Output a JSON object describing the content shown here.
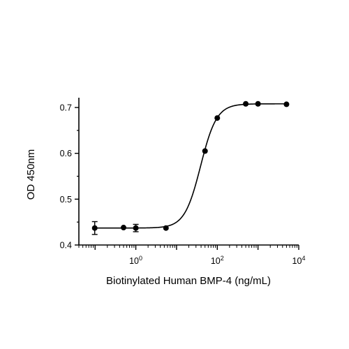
{
  "chart_data": {
    "type": "scatter",
    "xlabel": "Biotinylated Human BMP-4 (ng/mL)",
    "ylabel": "OD 450nm",
    "x_scale": "log",
    "xlim": [
      0.04,
      10000
    ],
    "ylim": [
      0.4,
      0.72
    ],
    "x_ticks": [
      {
        "value": 1,
        "base": "10",
        "exp": "0"
      },
      {
        "value": 100,
        "base": "10",
        "exp": "2"
      },
      {
        "value": 10000,
        "base": "10",
        "exp": "4"
      }
    ],
    "y_ticks": [
      {
        "value": 0.4,
        "label": "0.4"
      },
      {
        "value": 0.5,
        "label": "0.5"
      },
      {
        "value": 0.6,
        "label": "0.6"
      },
      {
        "value": 0.7,
        "label": "0.7"
      }
    ],
    "grid": false,
    "legend": false,
    "series": [
      {
        "x": [
          0.098,
          0.5,
          1.0,
          5.5,
          50,
          100,
          500,
          1000,
          5000
        ],
        "y": [
          0.437,
          0.438,
          0.437,
          0.437,
          0.605,
          0.677,
          0.708,
          0.708,
          0.707
        ],
        "error": [
          0.014,
          0,
          0.008,
          0,
          0,
          0,
          0,
          0,
          0
        ],
        "fit_curve": {
          "model": "4PL",
          "bottom": 0.437,
          "top": 0.708,
          "ec50": 39,
          "hill": 2.2
        }
      }
    ],
    "colors": {
      "points": "#000000",
      "curve": "#000000",
      "axes": "#000000"
    }
  }
}
